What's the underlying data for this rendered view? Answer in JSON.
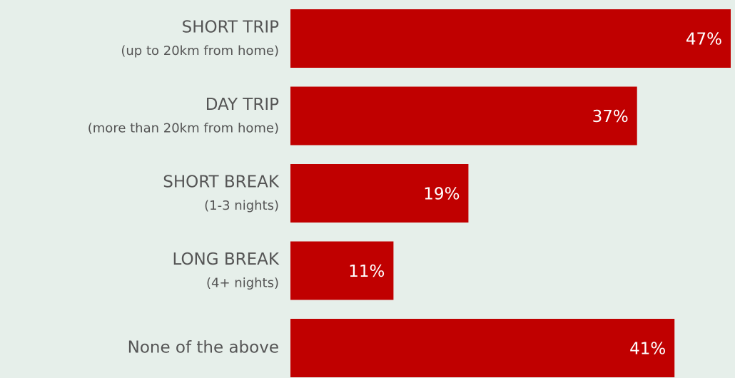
{
  "chart_data": {
    "type": "bar",
    "orientation": "horizontal",
    "categories": [
      "SHORT TRIP",
      "DAY TRIP",
      "SHORT BREAK",
      "LONG BREAK",
      "None of the above"
    ],
    "category_notes": [
      "(up to 20km from home)",
      "(more than 20km from home)",
      "(1-3 nights)",
      "(4+ nights)",
      null
    ],
    "values": [
      47,
      37,
      19,
      11,
      41
    ],
    "value_labels": [
      "47%",
      "37%",
      "19%",
      "11%",
      "41%"
    ],
    "color": "#c00000"
  }
}
